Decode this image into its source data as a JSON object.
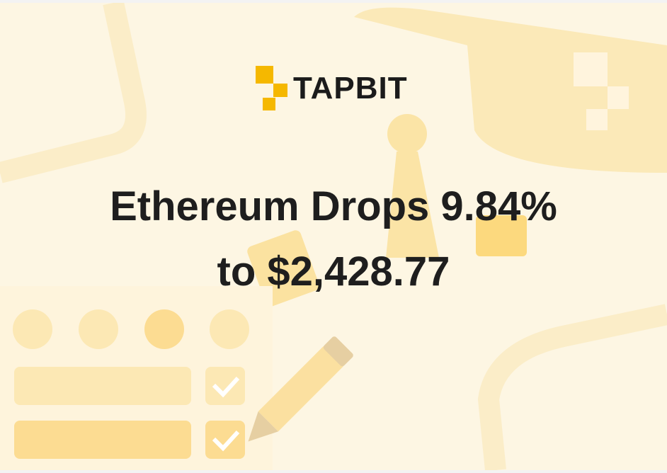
{
  "brand": "TAPBIT",
  "headline": {
    "line1": "Ethereum Drops 9.84%",
    "line2": "to $2,428.77"
  }
}
